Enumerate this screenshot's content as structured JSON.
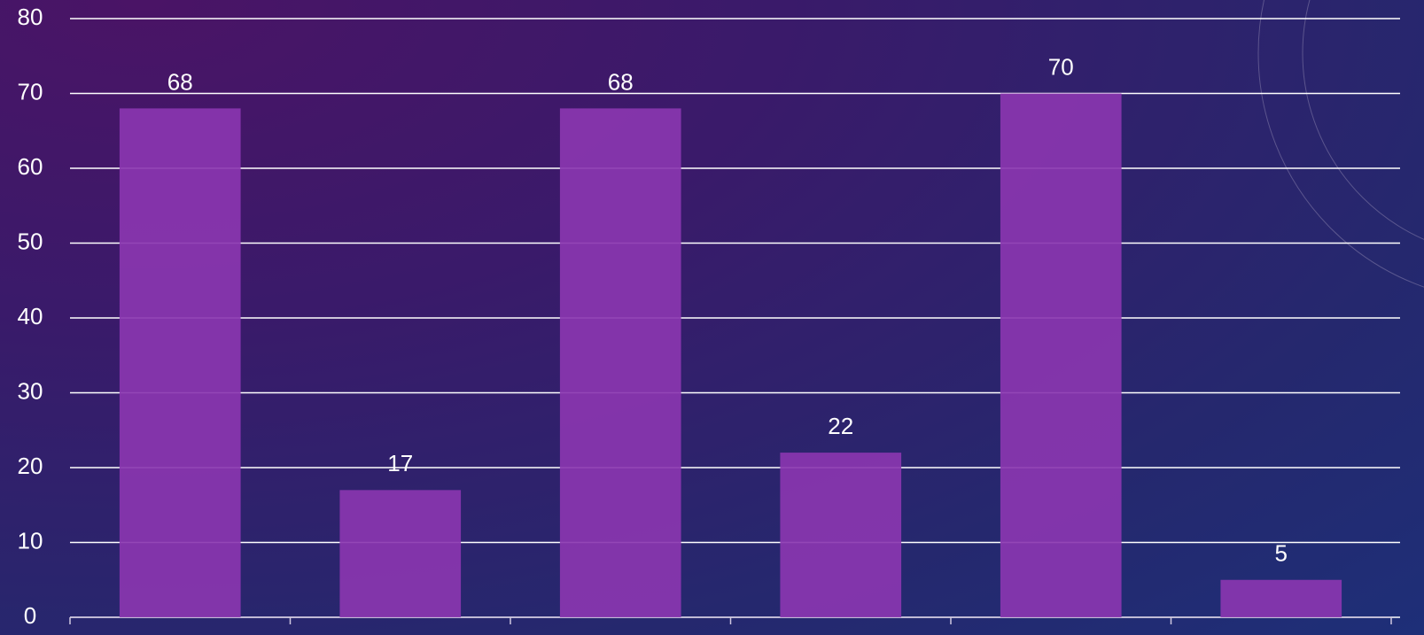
{
  "chart_data": {
    "type": "bar",
    "categories": [
      null,
      null,
      null,
      null,
      null,
      null
    ],
    "values": [
      68,
      17,
      68,
      22,
      70,
      5
    ],
    "color": "#8a36b0",
    "ylim": [
      0,
      80
    ],
    "yticks": [
      0,
      10,
      20,
      30,
      40,
      50,
      60,
      70,
      80
    ],
    "grid": true
  }
}
